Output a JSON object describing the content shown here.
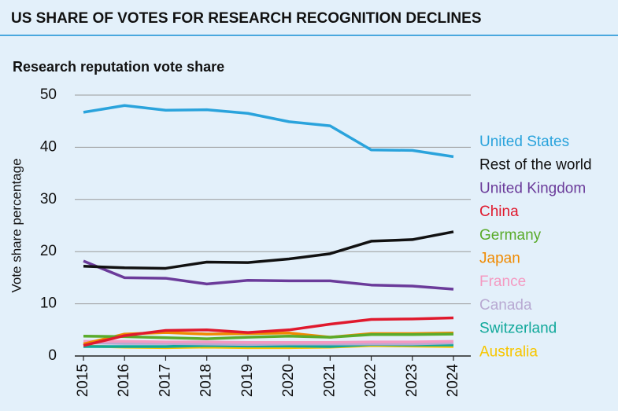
{
  "chart_data": {
    "type": "line",
    "title": "US SHARE OF VOTES FOR RESEARCH RECOGNITION DECLINES",
    "subtitle": "Research reputation vote share",
    "y_label": "Vote share percentage",
    "categories": [
      "2015",
      "2016",
      "2017",
      "2018",
      "2019",
      "2020",
      "2021",
      "2022",
      "2023",
      "2024"
    ],
    "ylim": [
      0,
      50
    ],
    "yticks": [
      0,
      10,
      20,
      30,
      40,
      50
    ],
    "grid": true,
    "series": [
      {
        "name": "United States",
        "color": "#2aa3dc",
        "values": [
          46.7,
          48.0,
          47.1,
          47.2,
          46.5,
          44.9,
          44.1,
          39.5,
          39.4,
          38.2
        ]
      },
      {
        "name": "Rest of the world",
        "color": "#111111",
        "values": [
          17.2,
          16.9,
          16.8,
          18.0,
          17.9,
          18.6,
          19.6,
          22.0,
          22.3,
          23.8
        ]
      },
      {
        "name": "United Kingdom",
        "color": "#6b3b9a",
        "values": [
          18.2,
          15.0,
          14.9,
          13.8,
          14.5,
          14.4,
          14.4,
          13.6,
          13.4,
          12.8
        ]
      },
      {
        "name": "China",
        "color": "#e0192d",
        "values": [
          2.0,
          3.9,
          4.9,
          5.0,
          4.5,
          5.0,
          6.1,
          7.0,
          7.1,
          7.3
        ]
      },
      {
        "name": "Germany",
        "color": "#5aab2b",
        "values": [
          3.8,
          3.7,
          3.5,
          3.3,
          3.6,
          3.8,
          3.6,
          4.1,
          4.1,
          4.2
        ]
      },
      {
        "name": "Japan",
        "color": "#f08a00",
        "values": [
          2.3,
          4.2,
          4.5,
          4.2,
          4.3,
          4.4,
          3.6,
          4.3,
          4.3,
          4.4
        ]
      },
      {
        "name": "France",
        "color": "#f49ac1",
        "values": [
          2.8,
          2.8,
          2.7,
          2.7,
          2.6,
          2.6,
          2.6,
          2.7,
          2.7,
          2.8
        ]
      },
      {
        "name": "Canada",
        "color": "#b8a9d2",
        "values": [
          2.5,
          2.4,
          2.4,
          2.3,
          2.2,
          2.3,
          2.3,
          2.3,
          2.3,
          2.5
        ]
      },
      {
        "name": "Switzerland",
        "color": "#10a89a",
        "values": [
          1.8,
          1.8,
          1.8,
          2.0,
          1.9,
          1.9,
          1.8,
          2.2,
          2.1,
          2.1
        ]
      },
      {
        "name": "Australia",
        "color": "#f7c600",
        "values": [
          1.9,
          1.7,
          1.6,
          1.7,
          1.6,
          1.6,
          1.7,
          2.0,
          1.9,
          1.8
        ]
      }
    ]
  }
}
